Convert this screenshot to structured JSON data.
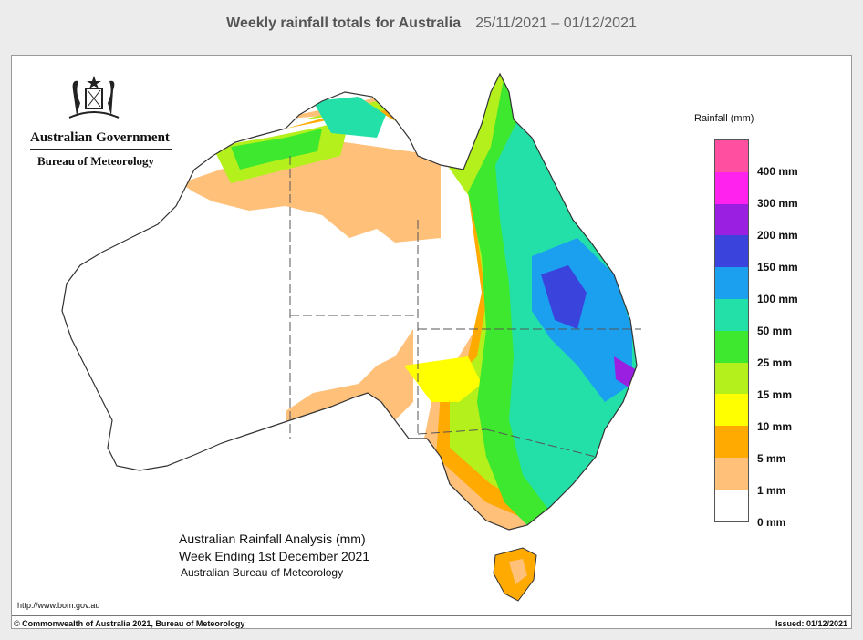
{
  "header": {
    "title": "Weekly rainfall totals for Australia",
    "dates": "25/11/2021 – 01/12/2021"
  },
  "branding": {
    "government": "Australian Government",
    "bureau": "Bureau of Meteorology"
  },
  "legend": {
    "title": "Rainfall (mm)",
    "items": [
      {
        "label": "400 mm",
        "color": "#ff4fa0"
      },
      {
        "label": "300 mm",
        "color": "#ff22ee"
      },
      {
        "label": "200 mm",
        "color": "#9a1fe0"
      },
      {
        "label": "150 mm",
        "color": "#3a44dc"
      },
      {
        "label": "100 mm",
        "color": "#1ba0f0"
      },
      {
        "label": "50 mm",
        "color": "#22e0a8"
      },
      {
        "label": "25 mm",
        "color": "#3ee82e"
      },
      {
        "label": "15 mm",
        "color": "#b4f01c"
      },
      {
        "label": "10 mm",
        "color": "#ffff00"
      },
      {
        "label": "5 mm",
        "color": "#ffaa00"
      },
      {
        "label": "1 mm",
        "color": "#ffc07a"
      },
      {
        "label": "0 mm",
        "color": "#ffffff"
      }
    ]
  },
  "caption": {
    "line1": "Australian Rainfall Analysis (mm)",
    "line2": "Week Ending 1st December 2021",
    "line3": "Australian Bureau of Meteorology"
  },
  "footer": {
    "url": "http://www.bom.gov.au",
    "copyright": "© Commonwealth of Australia 2021, Bureau of Meteorology",
    "issued": "Issued: 01/12/2021"
  }
}
